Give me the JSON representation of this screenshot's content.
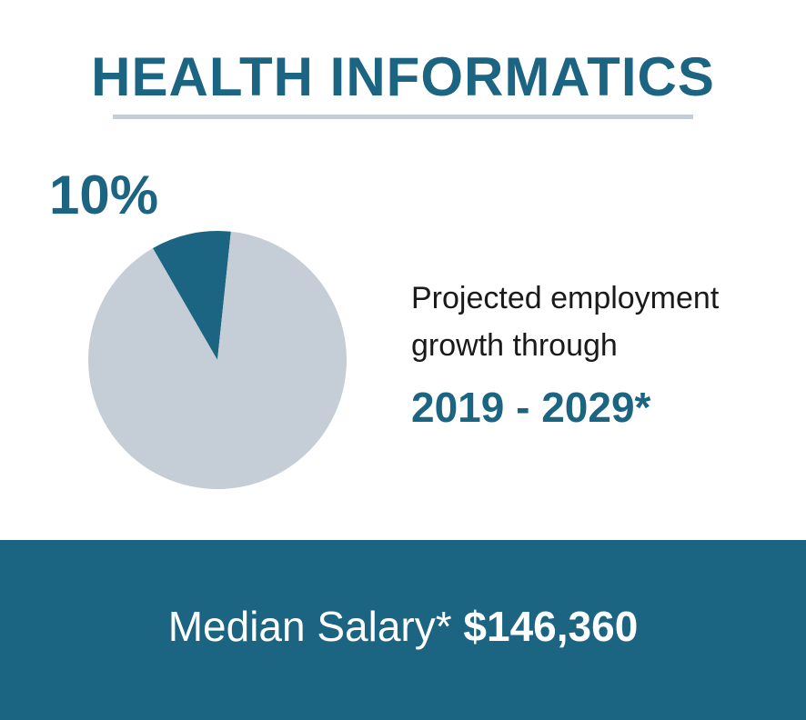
{
  "title": "HEALTH INFORMATICS",
  "colors": {
    "accent": "#1b6482",
    "pie_rest": "#c5ced6",
    "rule": "#c5ced6",
    "text": "#1a1a1a",
    "background": "#ffffff"
  },
  "chart_data": {
    "type": "pie",
    "slices": [
      {
        "label": "10%",
        "value": 10,
        "color": "#1b6482"
      },
      {
        "label": "",
        "value": 90,
        "color": "#c5ced6"
      }
    ],
    "start_angle_deg": -30,
    "highlight_label": "10%"
  },
  "description": {
    "line1": "Projected employment",
    "line2": "growth through",
    "years": "2019 - 2029*"
  },
  "salary": {
    "label": "Median Salary*",
    "value": "$146,360"
  }
}
